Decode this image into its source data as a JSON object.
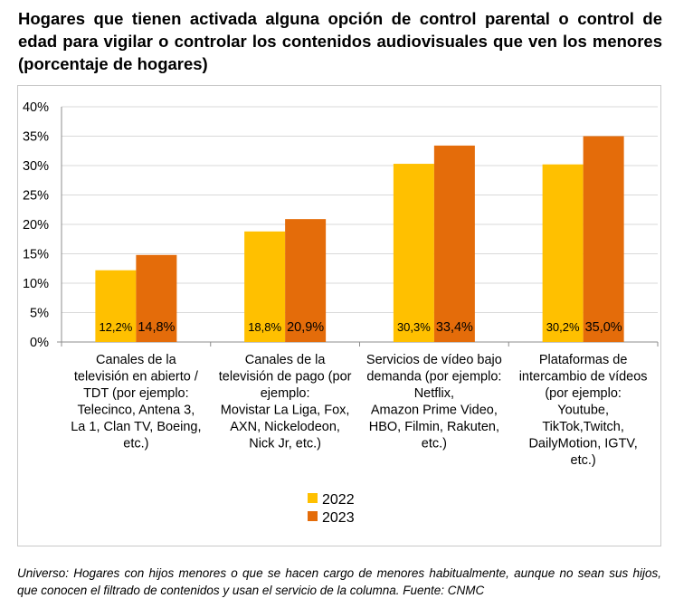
{
  "title": "Hogares que tienen activada alguna opción de control parental o control de edad para vigilar o controlar los contenidos audiovisuales que ven los menores (porcentaje de hogares)",
  "footnote": "Universo: Hogares con hijos menores o que se hacen cargo de menores habitualmente, aunque no sean sus hijos, que conocen el filtrado de contenidos y usan el servicio de la columna. Fuente: CNMC",
  "chart_data": {
    "type": "bar",
    "title": "Hogares que tienen activada alguna opción de control parental o control de edad para vigilar o controlar los contenidos audiovisuales que ven los menores (porcentaje de hogares)",
    "xlabel": "",
    "ylabel": "",
    "ylim": [
      0,
      40
    ],
    "y_ticks": [
      "0%",
      "5%",
      "10%",
      "15%",
      "20%",
      "25%",
      "30%",
      "35%",
      "40%"
    ],
    "grid": true,
    "legend_position": "bottom",
    "categories": [
      [
        "Canales de la",
        "televisión en abierto /",
        "TDT (por ejemplo:",
        "Telecinco, Antena 3,",
        "La 1, Clan TV, Boeing,",
        "etc.)"
      ],
      [
        "Canales de la",
        "televisión de pago (por",
        "ejemplo:",
        "Movistar La Liga, Fox,",
        "AXN, Nickelodeon,",
        "Nick Jr, etc.)"
      ],
      [
        "Servicios de vídeo bajo",
        "demanda (por ejemplo:",
        "Netflix,",
        "Amazon Prime Video,",
        "HBO, Filmin, Rakuten,",
        "etc.)"
      ],
      [
        "Plataformas de",
        "intercambio de vídeos",
        "(por ejemplo:",
        "Youtube,",
        "TikTok,Twitch,",
        "DailyMotion, IGTV,",
        "etc.)"
      ]
    ],
    "series": [
      {
        "name": "2022",
        "color": "#ffc000",
        "values": [
          12.2,
          18.8,
          30.3,
          30.2
        ],
        "labels": [
          "12,2%",
          "18,8%",
          "30,3%",
          "30,2%"
        ]
      },
      {
        "name": "2023",
        "color": "#e46c0a",
        "values": [
          14.8,
          20.9,
          33.4,
          35.0
        ],
        "labels": [
          "14,8%",
          "20,9%",
          "33,4%",
          "35,0%"
        ]
      }
    ]
  }
}
